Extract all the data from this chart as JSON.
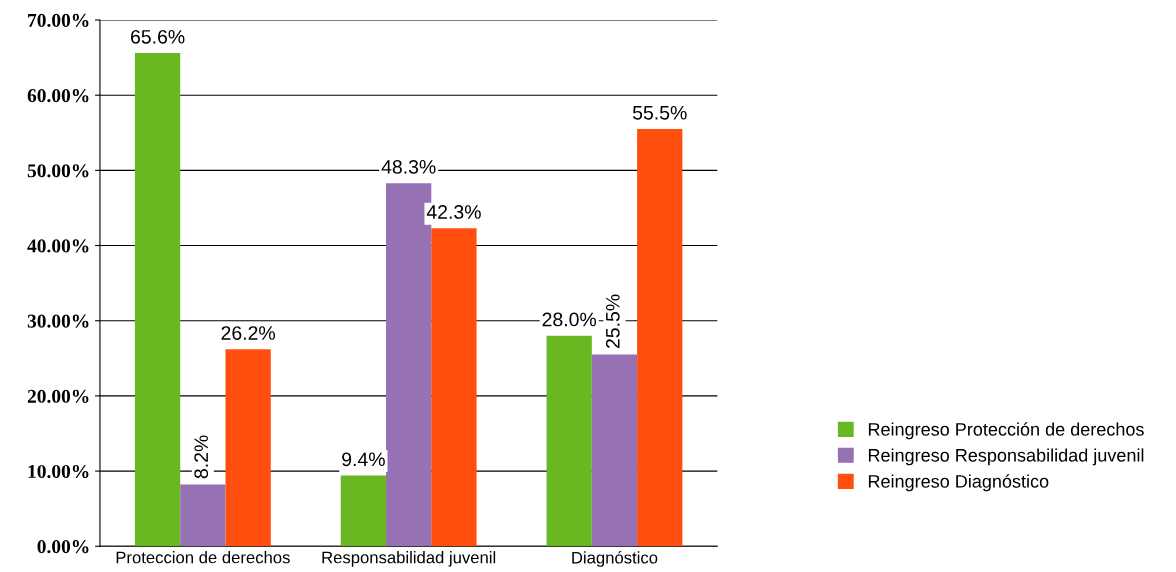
{
  "chart_data": {
    "type": "bar",
    "categories": [
      "Proteccion de derechos",
      "Responsabilidad juvenil",
      "Diagnóstico"
    ],
    "series": [
      {
        "name": "Reingreso Protección de derechos",
        "color": "#6ab821",
        "values": [
          65.6,
          9.4,
          28.0
        ],
        "value_labels": [
          "65.6%",
          "9.4%",
          "28.0%"
        ]
      },
      {
        "name": "Reingreso Responsabilidad juvenil",
        "color": "#9671b4",
        "values": [
          8.2,
          48.3,
          25.5
        ],
        "value_labels": [
          "8.2%",
          "48.3%",
          "25.5%"
        ]
      },
      {
        "name": "Reingreso Diagnóstico",
        "color": "#ff4e0e",
        "values": [
          26.2,
          42.3,
          55.5
        ],
        "value_labels": [
          "26.2%",
          "42.3%",
          "55.5%"
        ]
      }
    ],
    "ylim": [
      0,
      70
    ],
    "yticks": [
      {
        "value": 0,
        "label": "0.00%"
      },
      {
        "value": 10,
        "label": "10.00%"
      },
      {
        "value": 20,
        "label": "20.00%"
      },
      {
        "value": 30,
        "label": "30.00%"
      },
      {
        "value": 40,
        "label": "40.00%"
      },
      {
        "value": 50,
        "label": "50.00%"
      },
      {
        "value": 60,
        "label": "60.00%"
      },
      {
        "value": 70,
        "label": "70.00%"
      }
    ],
    "grid": "y",
    "legend": "right"
  }
}
